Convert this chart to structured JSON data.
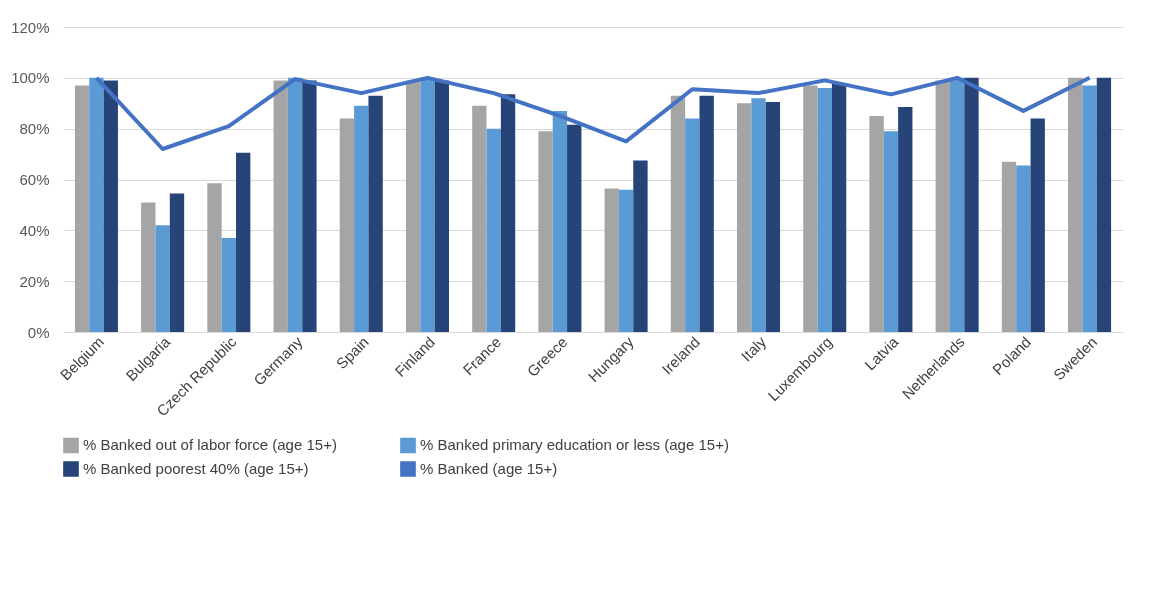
{
  "chart_data": {
    "type": "bar",
    "categories": [
      "Belgium",
      "Bulgaria",
      "Czech Republic",
      "Germany",
      "Spain",
      "Finland",
      "France",
      "Greece",
      "Hungary",
      "Ireland",
      "Italy",
      "Luxembourg",
      "Latvia",
      "Netherlands",
      "Poland",
      "Sweden"
    ],
    "series": [
      {
        "name": "% Banked out of labor force (age 15+)",
        "color": "#a5a5a5",
        "values": [
          97,
          51,
          58.5,
          99,
          84,
          99,
          89,
          79,
          56.5,
          93,
          90,
          97,
          85,
          99,
          67,
          100
        ]
      },
      {
        "name": "% Banked primary education or less (age 15+)",
        "color": "#5b9bd5",
        "values": [
          100,
          42,
          37,
          100,
          89,
          100,
          80,
          87,
          56,
          84,
          92,
          96,
          79,
          100,
          65.5,
          97
        ]
      },
      {
        "name": "% Banked poorest 40% (age 15+)",
        "color": "#264478",
        "values": [
          99,
          54.5,
          70.5,
          99,
          93,
          99,
          93.5,
          81.5,
          67.5,
          93,
          90.5,
          98,
          88.5,
          100,
          84,
          100
        ]
      },
      {
        "name": "% Banked (age 15+)",
        "type": "line",
        "color": "#4472c4",
        "values": [
          100,
          72,
          81,
          99.5,
          94,
          100,
          94,
          85,
          75,
          95.5,
          94,
          99,
          93.5,
          100,
          87,
          100
        ]
      }
    ],
    "ylim": [
      0,
      120
    ],
    "yticks": [
      {
        "value": 0,
        "label": "0%"
      },
      {
        "value": 20,
        "label": "20%"
      },
      {
        "value": 40,
        "label": "40%"
      },
      {
        "value": 60,
        "label": "60%"
      },
      {
        "value": 80,
        "label": "80%"
      },
      {
        "value": 100,
        "label": "100%"
      },
      {
        "value": 120,
        "label": "120%"
      }
    ],
    "grid": "y",
    "legend": "bottom"
  }
}
